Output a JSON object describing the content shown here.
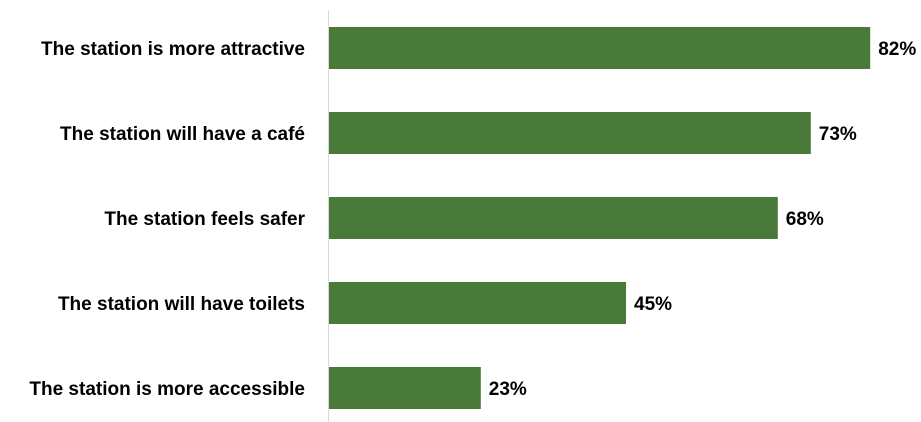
{
  "chart_data": {
    "type": "bar",
    "orientation": "horizontal",
    "title": "",
    "categories": [
      "The station is more attractive",
      "The station will have a café",
      "The station feels safer",
      "The station will have toilets",
      "The station is more accessible"
    ],
    "values": [
      82,
      73,
      68,
      45,
      23
    ],
    "data_labels": [
      "82%",
      "73%",
      "68%",
      "45%",
      "23%"
    ],
    "unit": "%",
    "xlim": [
      0,
      100
    ],
    "xlabel": "",
    "ylabel": "",
    "grid": false,
    "legend": "none",
    "colors": {
      "bar": "#4a7a3a",
      "axis": "#d9d9d9",
      "title": "#4a7a3a"
    }
  }
}
